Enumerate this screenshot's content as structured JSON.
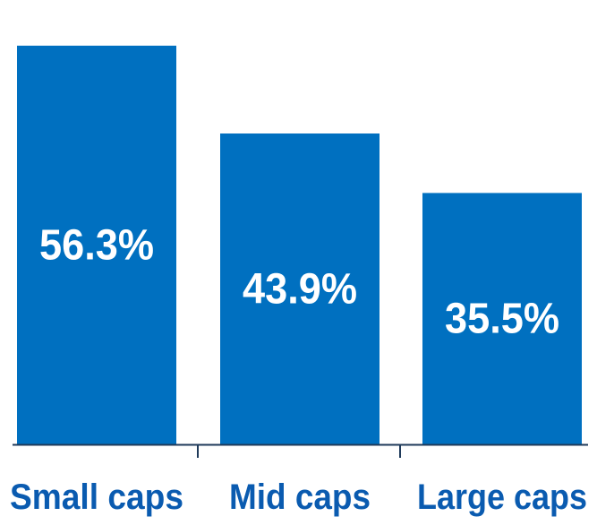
{
  "chart_data": {
    "type": "bar",
    "title": "",
    "xlabel": "",
    "ylabel": "",
    "categories": [
      "Small caps",
      "Mid caps",
      "Large caps"
    ],
    "values": [
      56.3,
      43.9,
      35.5
    ],
    "value_labels": [
      "56.3%",
      "43.9%",
      "35.5%"
    ],
    "ylim": [
      0,
      56.3
    ],
    "grid": false,
    "legend": "none",
    "bar_color": "#0070c0",
    "label_color": "#ffffff",
    "category_color": "#0a5bb0",
    "axis_color": "#1f3a5a"
  }
}
